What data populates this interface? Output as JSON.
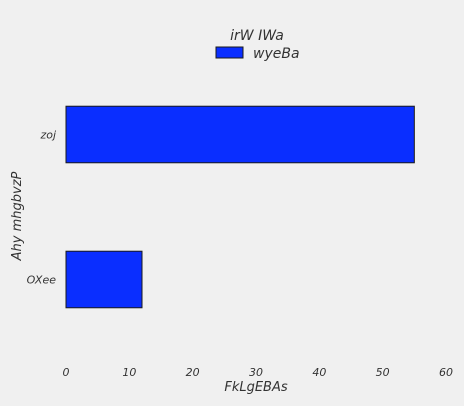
{
  "chart_data": {
    "type": "bar",
    "orientation": "horizontal",
    "categories": [
      "OXee",
      "zoj"
    ],
    "series": [
      {
        "name": "wyeBa",
        "values": [
          12,
          55
        ],
        "color": "#0a2eff"
      }
    ],
    "xlabel": "FkLgEBAs",
    "ylabel": "Ahy mhgbvzP",
    "xlim": [
      0,
      60
    ],
    "xticks": [
      "0",
      "10",
      "20",
      "30",
      "40",
      "50",
      "60"
    ],
    "legend": {
      "title": "irW IWa",
      "placement": "top-center"
    },
    "grid": false,
    "bar_edge_color": "#1a1a1a",
    "background": "#f0f0f0"
  }
}
